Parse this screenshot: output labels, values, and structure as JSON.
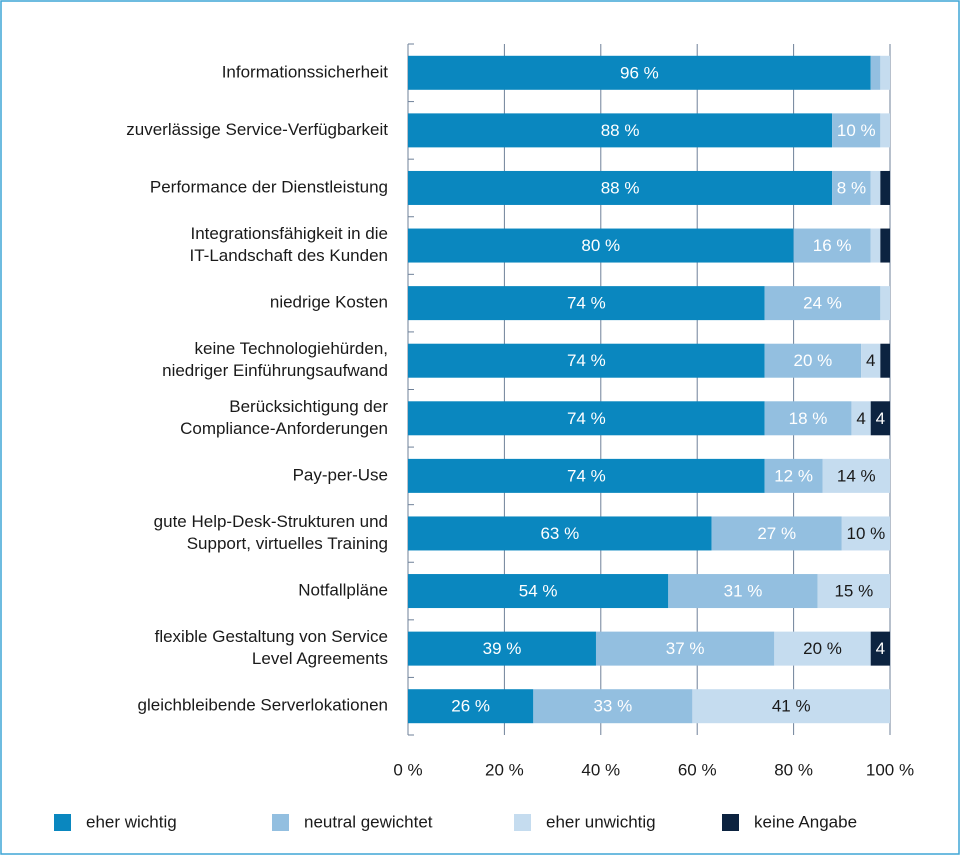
{
  "chart_data": {
    "type": "stacked-bar-horizontal",
    "categories": [
      [
        "Informationssicherheit"
      ],
      [
        "zuverlässige Service-Verfügbarkeit"
      ],
      [
        "Performance der Dienstleistung"
      ],
      [
        "Integrationsfähigkeit in die",
        "IT-Landschaft des Kunden"
      ],
      [
        "niedrige Kosten"
      ],
      [
        "keine Technologiehürden,",
        "niedriger Einführungsaufwand"
      ],
      [
        "Berücksichtigung der",
        "Compliance-Anforderungen"
      ],
      [
        "Pay-per-Use"
      ],
      [
        "gute Help-Desk-Strukturen und",
        "Support, virtuelles Training"
      ],
      [
        "Notfallpläne"
      ],
      [
        "flexible Gestaltung von Service",
        "Level Agreements"
      ],
      [
        "gleichbleibende Serverlokationen"
      ]
    ],
    "series": [
      {
        "name": "eher wichtig",
        "color": "#0a87bf",
        "label_color": "#ffffff",
        "values": [
          96,
          88,
          88,
          80,
          74,
          74,
          74,
          74,
          63,
          54,
          39,
          26
        ],
        "value_labels": [
          "96 %",
          "88 %",
          "88 %",
          "80 %",
          "74 %",
          "74 %",
          "74 %",
          "74 %",
          "63 %",
          "54 %",
          "39 %",
          "26 %"
        ]
      },
      {
        "name": "neutral gewichtet",
        "color": "#93bfe0",
        "label_color": "#ffffff",
        "values": [
          2,
          10,
          8,
          16,
          24,
          20,
          18,
          12,
          27,
          31,
          37,
          33
        ],
        "value_labels": [
          null,
          "10 %",
          "8 %",
          "16 %",
          "24 %",
          "20 %",
          "18 %",
          "12 %",
          "27 %",
          "31 %",
          "37 %",
          "33 %"
        ]
      },
      {
        "name": "eher unwichtig",
        "color": "#c5dcef",
        "label_color": "#1a1a1a",
        "values": [
          2,
          2,
          2,
          2,
          2,
          4,
          4,
          14,
          10,
          15,
          20,
          41
        ],
        "value_labels": [
          null,
          null,
          null,
          null,
          null,
          "4",
          "4",
          "14 %",
          "10 %",
          "15 %",
          "20 %",
          "41 %"
        ]
      },
      {
        "name": "keine Angabe",
        "color": "#0c2340",
        "label_color": "#ffffff",
        "values": [
          0,
          0,
          2,
          2,
          0,
          2,
          4,
          0,
          0,
          0,
          4,
          0
        ],
        "value_labels": [
          null,
          null,
          null,
          null,
          null,
          null,
          "4",
          null,
          null,
          null,
          "4",
          null
        ]
      }
    ],
    "xlim": [
      0,
      100
    ],
    "xticks": [
      {
        "value": 0,
        "label": "0 %"
      },
      {
        "value": 20,
        "label": "20 %"
      },
      {
        "value": 40,
        "label": "40 %"
      },
      {
        "value": 60,
        "label": "60 %"
      },
      {
        "value": 80,
        "label": "80 %"
      },
      {
        "value": 100,
        "label": "100 %"
      }
    ],
    "grid": true,
    "legend": "bottom"
  }
}
